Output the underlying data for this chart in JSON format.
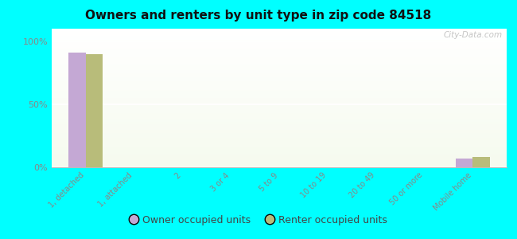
{
  "title": "Owners and renters by unit type in zip code 84518",
  "categories": [
    "1, detached",
    "1, attached",
    "2",
    "3 or 4",
    "5 to 9",
    "10 to 19",
    "20 to 49",
    "50 or more",
    "Mobile home"
  ],
  "owner_values": [
    91,
    0,
    0,
    0,
    0,
    0,
    0,
    0,
    7
  ],
  "renter_values": [
    90,
    0,
    0,
    0,
    0,
    0,
    0,
    0,
    8
  ],
  "owner_color": "#c4a8d4",
  "renter_color": "#b8bc7a",
  "background_color": "#00ffff",
  "yticks": [
    0,
    50,
    100
  ],
  "ylim": [
    0,
    110
  ],
  "bar_width": 0.35,
  "watermark": "City-Data.com",
  "legend_owner": "Owner occupied units",
  "legend_renter": "Renter occupied units",
  "tick_color": "#888888",
  "title_color": "#111111"
}
